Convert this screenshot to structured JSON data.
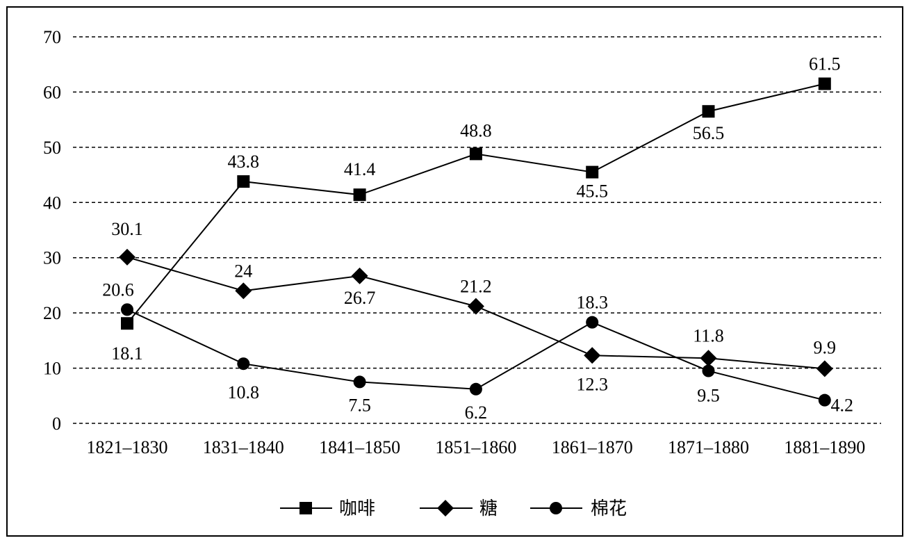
{
  "chart_data": {
    "type": "line",
    "title": "",
    "xlabel": "",
    "ylabel": "",
    "categories": [
      "1821–1830",
      "1831–1840",
      "1841–1850",
      "1851–1860",
      "1861–1870",
      "1871–1880",
      "1881–1890"
    ],
    "ylim": [
      0,
      70
    ],
    "yticks": [
      "0",
      "10",
      "20",
      "30",
      "40",
      "50",
      "60",
      "70"
    ],
    "grid": true,
    "legend_position": "bottom",
    "series": [
      {
        "name": "咖啡",
        "marker": "square",
        "values": [
          18.1,
          43.8,
          41.4,
          48.8,
          45.5,
          56.5,
          61.5
        ],
        "labels": [
          "18.1",
          "43.8",
          "41.4",
          "48.8",
          "45.5",
          "56.5",
          "61.5"
        ]
      },
      {
        "name": "糖",
        "marker": "diamond",
        "values": [
          30.1,
          24,
          26.7,
          21.2,
          12.3,
          11.8,
          9.9
        ],
        "labels": [
          "30.1",
          "24",
          "26.7",
          "21.2",
          "12.3",
          "11.8",
          "9.9"
        ]
      },
      {
        "name": "棉花",
        "marker": "circle",
        "values": [
          20.6,
          10.8,
          7.5,
          6.2,
          18.3,
          9.5,
          4.2
        ],
        "labels": [
          "20.6",
          "10.8",
          "7.5",
          "6.2",
          "18.3",
          "9.5",
          "4.2"
        ]
      }
    ],
    "colors": {
      "line": "#000000",
      "grid": "#000000",
      "background": "#ffffff"
    }
  }
}
